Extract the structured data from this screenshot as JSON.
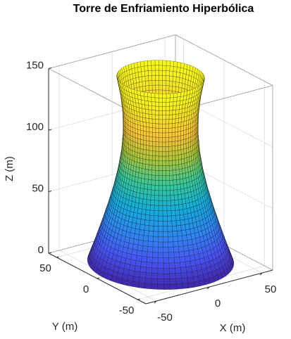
{
  "chart_data": {
    "type": "surface",
    "title": "Torre de Enfriamiento Hiperbólica",
    "xlabel": "X (m)",
    "ylabel": "Y (m)",
    "zlabel": "Z (m)",
    "xlim": [
      -60,
      60
    ],
    "ylim": [
      -60,
      60
    ],
    "zlim": [
      0,
      150
    ],
    "xticks": [
      -50,
      0,
      50
    ],
    "yticks": [
      -50,
      0,
      50
    ],
    "zticks": [
      0,
      50,
      100,
      150
    ],
    "grid": true,
    "colormap": [
      "#3e26a8",
      "#4752f4",
      "#2d87f0",
      "#12aedb",
      "#37c897",
      "#abc738",
      "#fec337",
      "#f5e624",
      "#f9fb15"
    ],
    "surface": {
      "z": [
        0,
        15,
        30,
        45,
        60,
        75,
        90,
        105,
        120,
        135,
        150
      ],
      "radius": [
        55,
        49.5,
        44.4,
        39.6,
        35.3,
        31.8,
        29.3,
        28.1,
        28.3,
        30,
        33
      ]
    }
  }
}
